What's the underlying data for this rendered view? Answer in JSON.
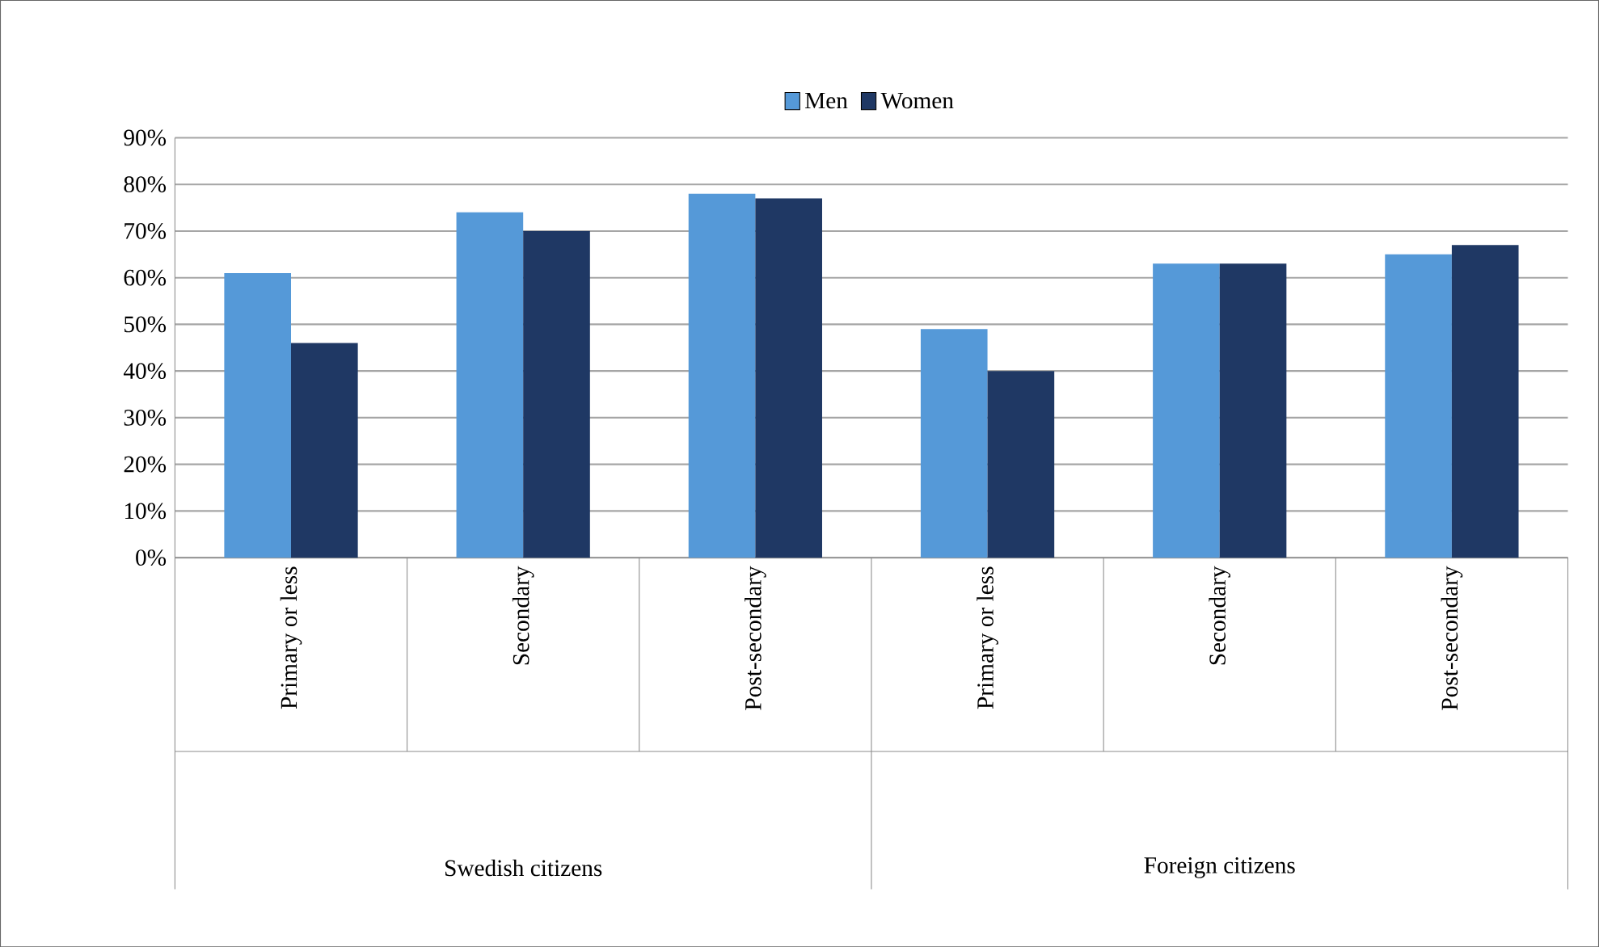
{
  "chart_data": {
    "type": "bar",
    "categories": [
      "Primary or less",
      "Secondary",
      "Post-secondary",
      "Primary or less",
      "Secondary",
      "Post-secondary"
    ],
    "series": [
      {
        "name": "Men",
        "color": "#5599d8",
        "values": [
          61,
          74,
          78,
          49,
          63,
          65
        ]
      },
      {
        "name": "Women",
        "color": "#1f3864",
        "values": [
          46,
          70,
          77,
          40,
          63,
          67
        ]
      }
    ],
    "ylim": [
      0,
      90
    ],
    "yticks": [
      {
        "value": 0,
        "label": "0%"
      },
      {
        "value": 10,
        "label": "10%"
      },
      {
        "value": 20,
        "label": "20%"
      },
      {
        "value": 30,
        "label": "30%"
      },
      {
        "value": 40,
        "label": "40%"
      },
      {
        "value": 50,
        "label": "50%"
      },
      {
        "value": 60,
        "label": "60%"
      },
      {
        "value": 70,
        "label": "70%"
      },
      {
        "value": 80,
        "label": "80%"
      },
      {
        "value": 90,
        "label": "90%"
      }
    ],
    "grid": "y",
    "legend": "top",
    "annotations": [
      "Swedish citizens",
      "Foreign citizens"
    ]
  }
}
